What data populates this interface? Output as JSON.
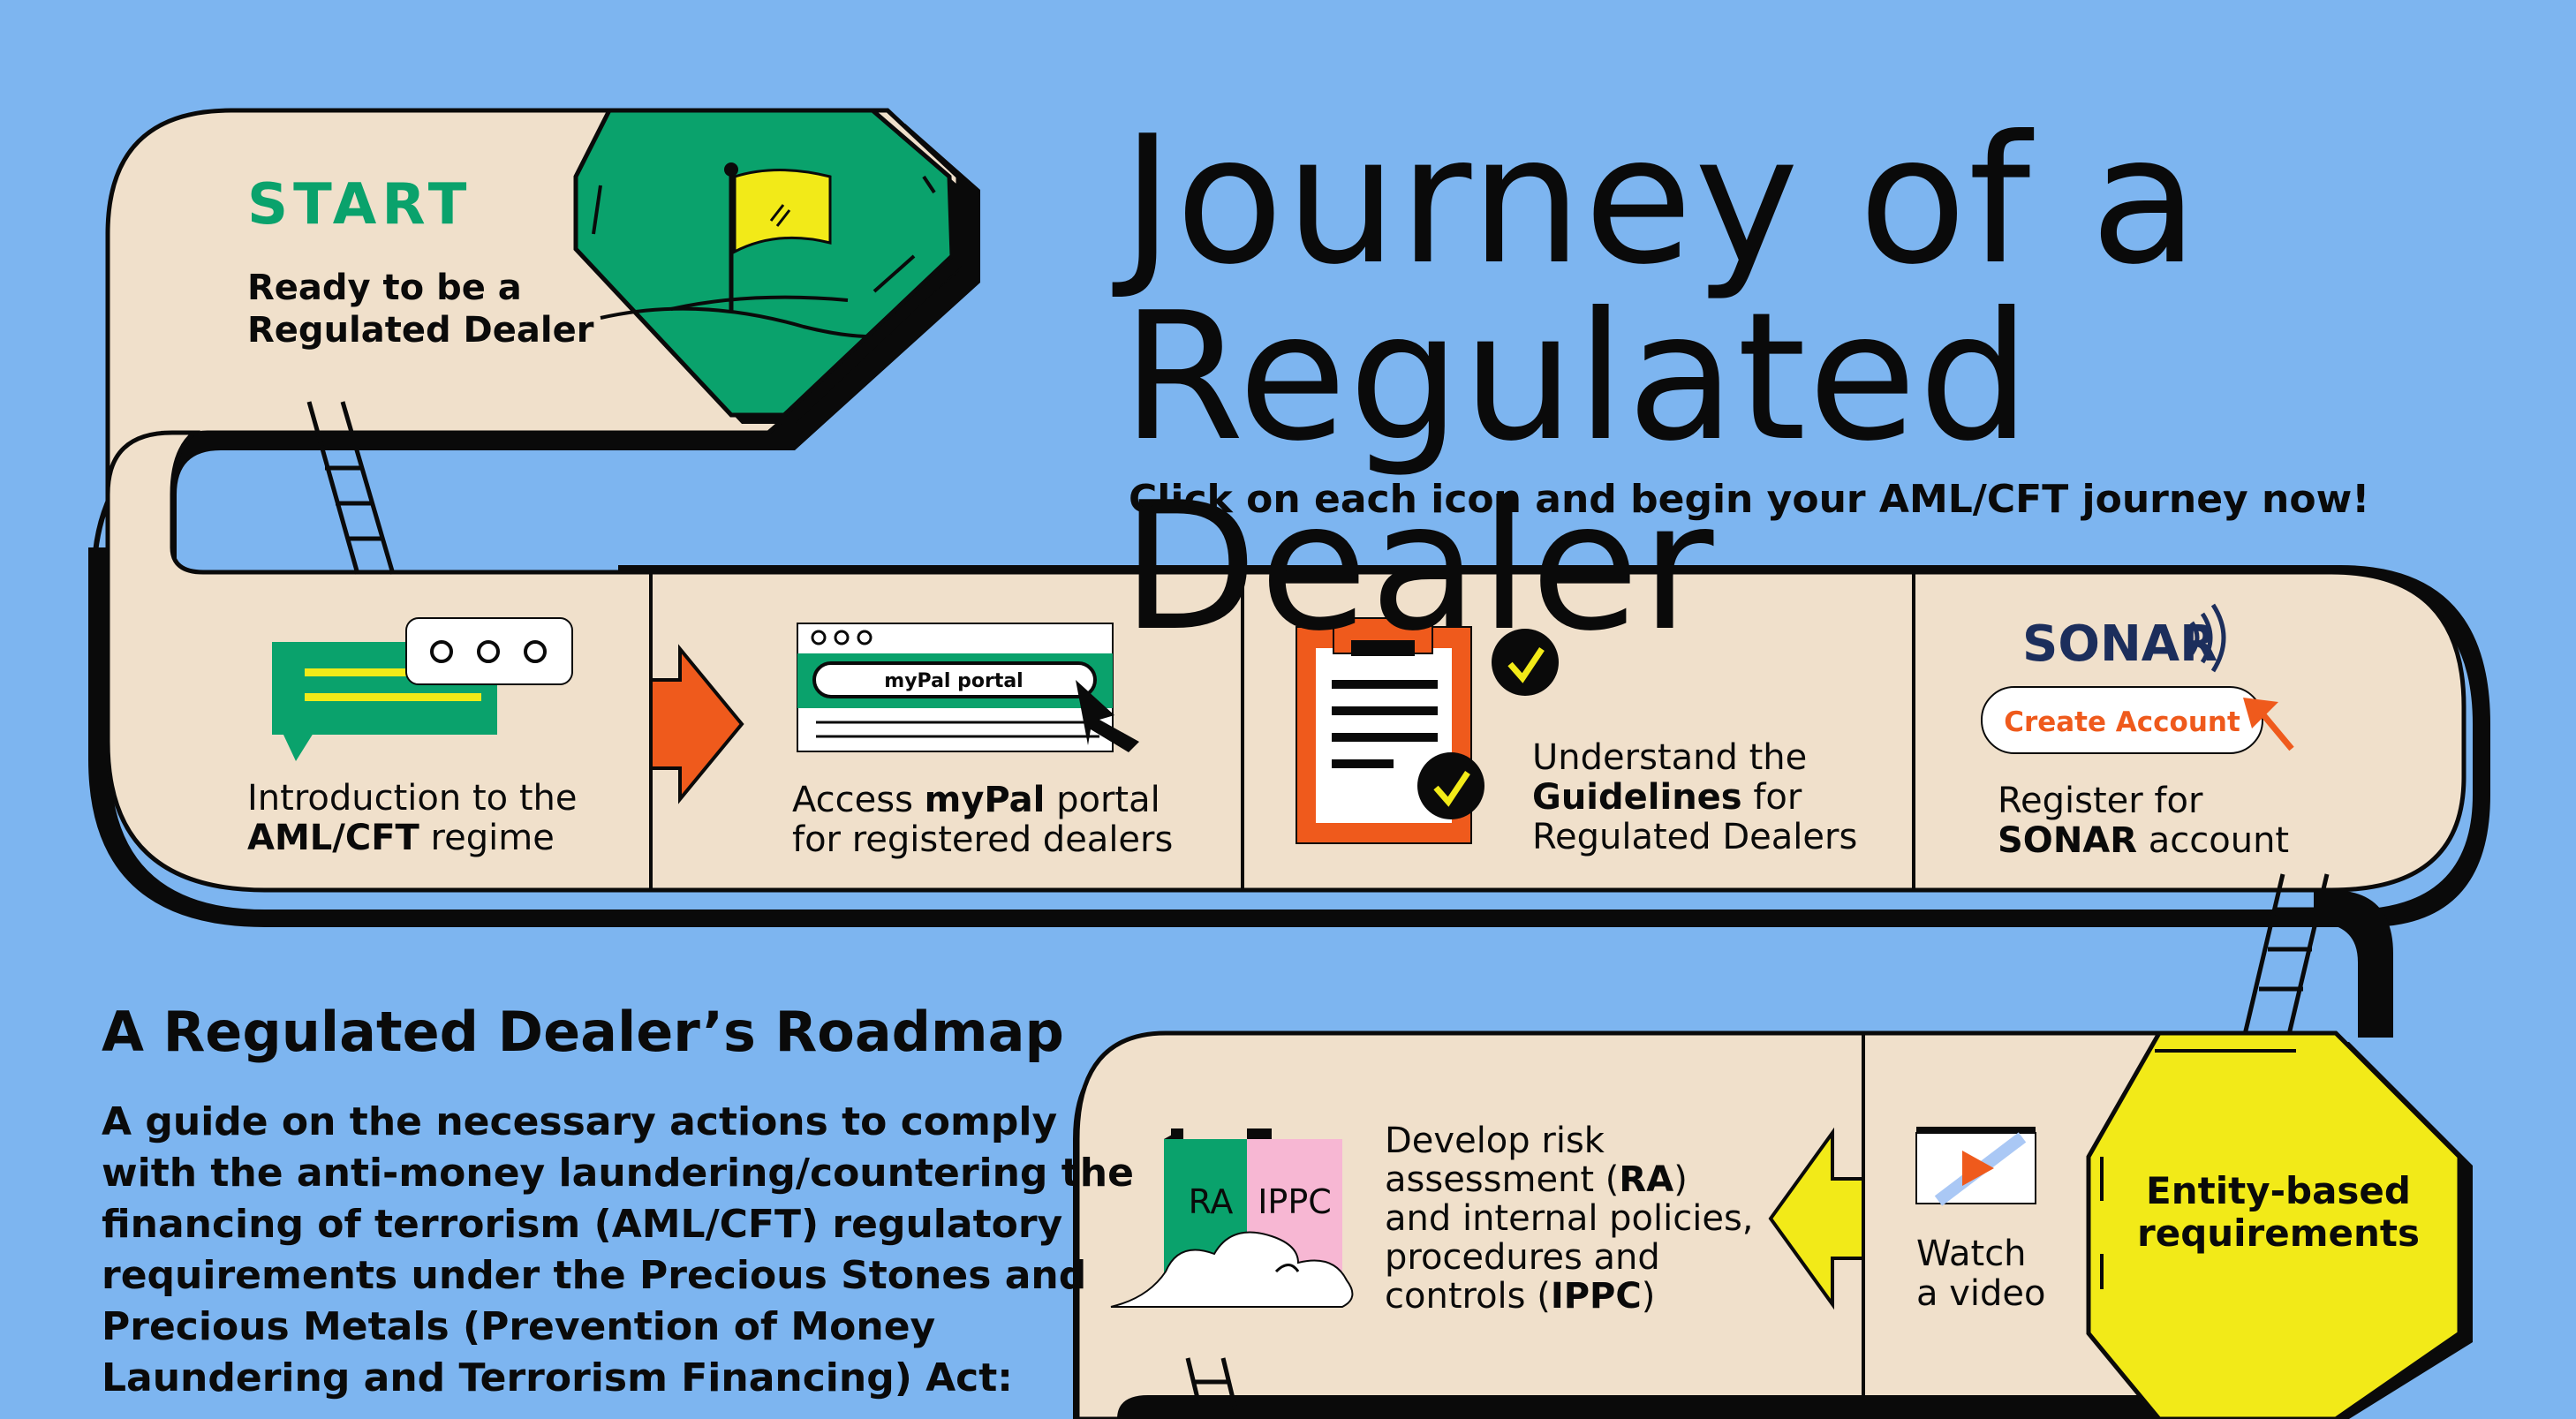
{
  "title": {
    "line1": "Journey of a",
    "line2": "Regulated Dealer"
  },
  "subtitle": "Click on each icon and begin your AML/CFT journey now!",
  "start": {
    "label": "START",
    "desc_line1": "Ready to be a",
    "desc_line2": "Regulated Dealer"
  },
  "steps": [
    {
      "pre": "Introduction to the",
      "bold": "AML/CFT",
      "post": " regime",
      "icon": "chat-bubble-icon"
    },
    {
      "pre": "Access ",
      "bold": "myPal",
      "post": " portal",
      "line2": "for registered dealers",
      "icon": "browser-window-icon",
      "portal_label": "myPal portal"
    },
    {
      "pre": "Understand the",
      "bold": "Guidelines",
      "post": " for",
      "line3": "Regulated Dealers",
      "icon": "clipboard-checklist-icon"
    },
    {
      "pre": "Register for",
      "bold": "SONAR",
      "post": " account",
      "icon": "sonar-logo-icon",
      "logo": "SONAR",
      "button": "Create Account"
    }
  ],
  "row2": {
    "stop_line1": "Entity-based",
    "stop_line2": "requirements",
    "video_line1": "Watch",
    "video_line2": "a video",
    "ra_lines": [
      "Develop risk",
      "assessment (",
      "RA",
      ")",
      "and internal policies,",
      "procedures and",
      "controls (",
      "IPPC",
      ")"
    ],
    "doc_ra": "RA",
    "doc_ippc": "IPPC"
  },
  "roadmap": {
    "heading": "A Regulated Dealer’s Roadmap",
    "lines": [
      "A guide on the necessary actions to comply",
      "with the anti-money laundering/countering the",
      "financing of terrorism (AML/CFT) regulatory",
      "requirements under the Precious Stones and",
      "Precious Metals (Prevention of Money",
      "Laundering and Terrorism Financing) Act:"
    ]
  },
  "colors": {
    "background": "#7db5f0",
    "path": "#f0e0cb",
    "outline": "#0a0a0a",
    "green": "#0aa26c",
    "yellow": "#f2ea18",
    "orange": "#ef5a1c",
    "pink": "#f7b7d3"
  }
}
